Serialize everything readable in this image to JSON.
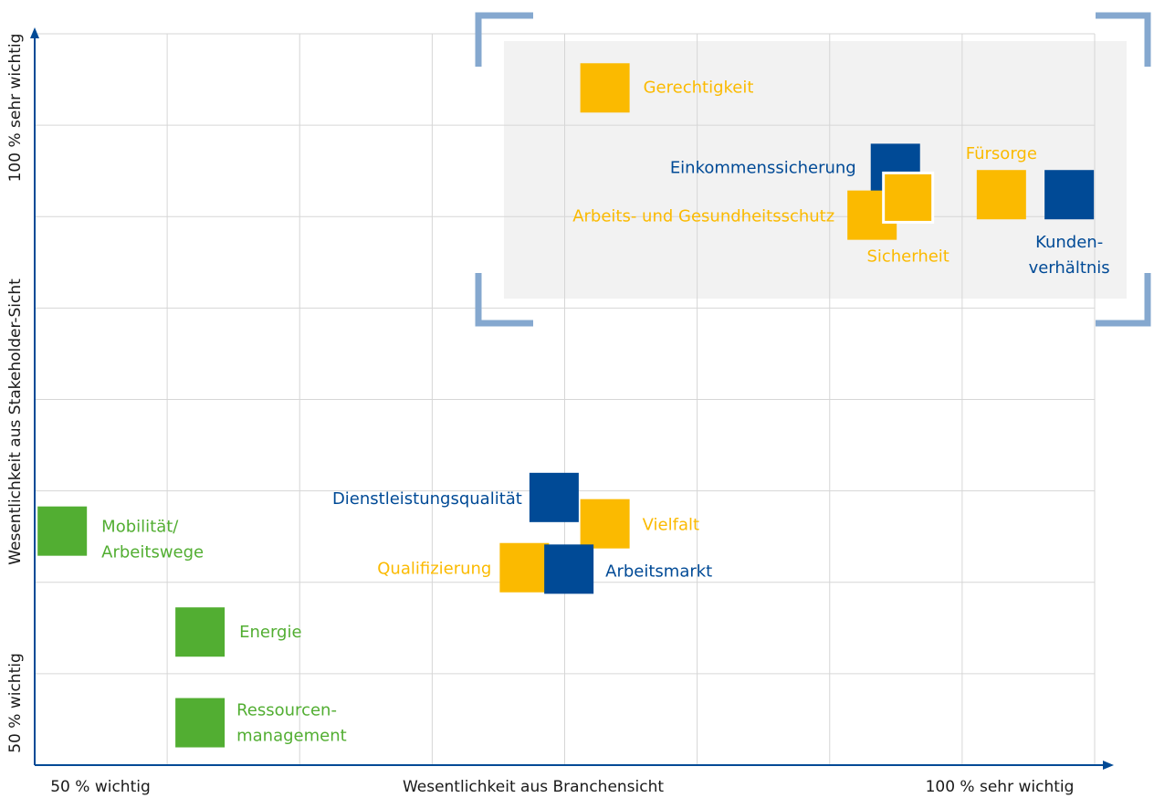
{
  "chart_data": {
    "type": "scatter",
    "x_axis": {
      "title": "Wesentlichkeit aus Branchensicht",
      "low": "50 % wichtig",
      "high": "100 % sehr wichtig"
    },
    "y_axis": {
      "title": "Wesentlichkeit aus Stakeholder-Sicht",
      "low": "50 % wichtig",
      "high": "100 %  sehr wichtig"
    },
    "xlim": [
      50,
      100
    ],
    "ylim": [
      50,
      100
    ],
    "grid": true,
    "points": [
      {
        "label": [
          "Gerechtigkeit"
        ],
        "x": 76.9,
        "y": 96.3,
        "color": "#fbba00"
      },
      {
        "label": [
          "Einkommenssicherung"
        ],
        "x": 90.6,
        "y": 90.8,
        "color": "#004a96"
      },
      {
        "label": [
          "Arbeits- und Gesundheitsschutz"
        ],
        "x": 89.5,
        "y": 87.6,
        "color": "#fbba00"
      },
      {
        "label": [
          "Sicherheit"
        ],
        "x": 91.2,
        "y": 88.8,
        "color": "#fbba00"
      },
      {
        "label": [
          "Fürsorge"
        ],
        "x": 95.6,
        "y": 89.0,
        "color": "#fbba00"
      },
      {
        "label": [
          "Kunden-",
          "verhältnis"
        ],
        "x": 98.8,
        "y": 89.0,
        "color": "#004a96"
      },
      {
        "label": [
          "Dienstleistungsqualität"
        ],
        "x": 74.5,
        "y": 68.3,
        "color": "#004a96"
      },
      {
        "label": [
          "Vielfalt"
        ],
        "x": 76.9,
        "y": 66.5,
        "color": "#fbba00"
      },
      {
        "label": [
          "Qualifizierung"
        ],
        "x": 73.1,
        "y": 63.5,
        "color": "#fbba00"
      },
      {
        "label": [
          "Arbeitsmarkt"
        ],
        "x": 75.2,
        "y": 63.4,
        "color": "#004a96"
      },
      {
        "label": [
          "Mobilität/",
          "Arbeitswege"
        ],
        "x": 51.3,
        "y": 66.0,
        "color": "#52ae32"
      },
      {
        "label": [
          "Energie"
        ],
        "x": 57.8,
        "y": 59.1,
        "color": "#52ae32"
      },
      {
        "label": [
          "Ressourcen-",
          "management"
        ],
        "x": 57.8,
        "y": 52.9,
        "color": "#52ae32"
      }
    ]
  }
}
